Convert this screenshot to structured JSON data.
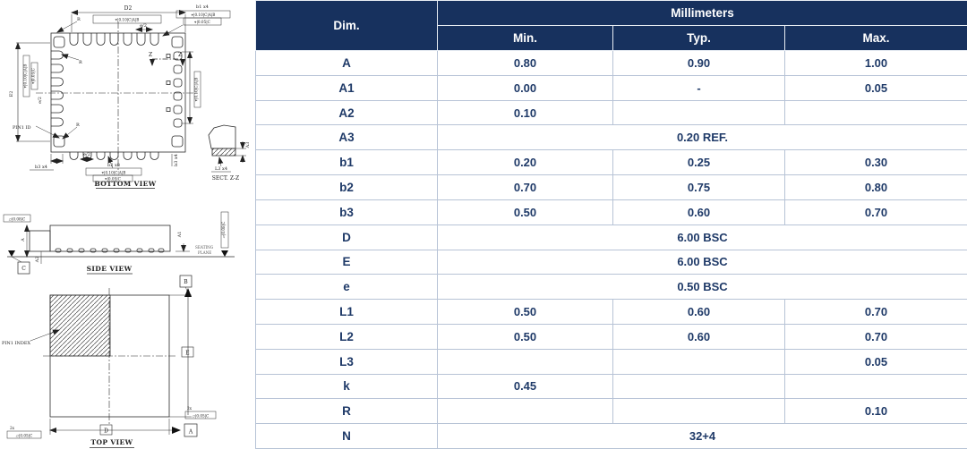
{
  "colors": {
    "header_bg": "#17315e",
    "header_text": "#ffffff",
    "cell_text": "#1f3a68",
    "table_border": "#b7c3d6",
    "drawing_line": "#222222"
  },
  "table": {
    "header": {
      "dim": "Dim.",
      "group": "Millimeters",
      "cols": [
        "Min.",
        "Typ.",
        "Max."
      ]
    },
    "rows": [
      {
        "dim": "A",
        "min": "0.80",
        "typ": "0.90",
        "max": "1.00"
      },
      {
        "dim": "A1",
        "min": "0.00",
        "typ": "-",
        "max": "0.05"
      },
      {
        "dim": "A2",
        "min": "0.10",
        "typ": "",
        "max": ""
      },
      {
        "dim": "A3",
        "span": "0.20 REF."
      },
      {
        "dim": "b1",
        "min": "0.20",
        "typ": "0.25",
        "max": "0.30"
      },
      {
        "dim": "b2",
        "min": "0.70",
        "typ": "0.75",
        "max": "0.80"
      },
      {
        "dim": "b3",
        "min": "0.50",
        "typ": "0.60",
        "max": "0.70"
      },
      {
        "dim": "D",
        "span": "6.00 BSC"
      },
      {
        "dim": "E",
        "span": "6.00 BSC"
      },
      {
        "dim": "e",
        "span": "0.50 BSC"
      },
      {
        "dim": "L1",
        "min": "0.50",
        "typ": "0.60",
        "max": "0.70"
      },
      {
        "dim": "L2",
        "min": "0.50",
        "typ": "0.60",
        "max": "0.70"
      },
      {
        "dim": "L3",
        "min": "",
        "typ": "",
        "max": "0.05"
      },
      {
        "dim": "k",
        "min": "0.45",
        "typ": "",
        "max": ""
      },
      {
        "dim": "R",
        "min": "",
        "typ": "",
        "max": "0.10"
      },
      {
        "dim": "N",
        "span": "32+4"
      }
    ]
  },
  "diagram": {
    "captions": {
      "bottom": "BOTTOM VIEW",
      "sect": "SECT. Z-Z",
      "side": "SIDE VIEW",
      "top": "TOP VIEW"
    },
    "labels": {
      "d2": "D2",
      "e2": "E2",
      "e_half": "e/2",
      "b1_x4": "b1 x4",
      "b2_x8": "b2 x8",
      "b3_x4": "b3 x4",
      "l3_x4": "L3 x4",
      "a3": "A3",
      "pin1_id": "PIN1 ID",
      "pin1_index": "PIN1 INDEX",
      "r": "R",
      "z": "Z",
      "a": "A",
      "a1": "A1",
      "a2": "A2",
      "seating_line1": "SEATING",
      "seating_line2": "PLANE",
      "datum_a": "A",
      "datum_b": "B",
      "datum_c": "C",
      "dim_d": "D",
      "dim_e": "E",
      "two_x": "2x",
      "fcf_pos_cab": "⌖|0.10|C|A|B",
      "fcf_pos_c": "⌖|0.05|C",
      "fcf_flat_08": "▱|0.08|C",
      "fcf_flat_05": "▱|0.05|C"
    }
  }
}
